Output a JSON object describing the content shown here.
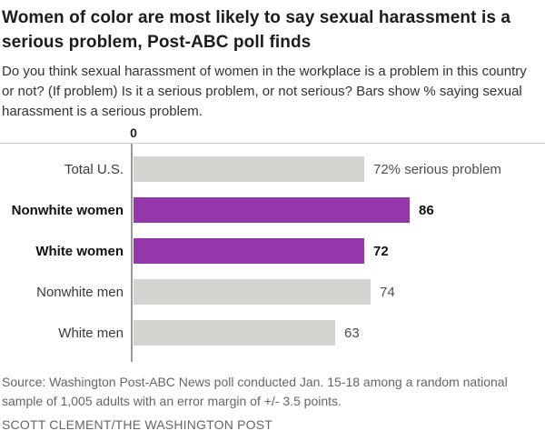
{
  "header": {
    "title": "Women of color are most likely to say sexual harassment is a serious problem, Post-ABC poll finds",
    "subtitle": "Do you think sexual harassment of women in the workplace is a problem in this country or not? (If problem) Is it a serious problem, or not serious? Bars show % saying sexual harassment is a serious problem."
  },
  "chart_data": {
    "type": "bar",
    "orientation": "horizontal",
    "title": "Women of color are most likely to say sexual harassment is a serious problem, Post-ABC poll finds",
    "xlabel": "",
    "ylabel": "",
    "xlim": [
      0,
      100
    ],
    "axis": {
      "zero_label": "0"
    },
    "categories": [
      "Total U.S.",
      "Nonwhite women",
      "White women",
      "Nonwhite men",
      "White men"
    ],
    "values": [
      72,
      86,
      72,
      74,
      63
    ],
    "rows": [
      {
        "label": "Total U.S.",
        "value": 72,
        "value_label": "72% serious problem",
        "highlighted": false
      },
      {
        "label": "Nonwhite women",
        "value": 86,
        "value_label": "86",
        "highlighted": true
      },
      {
        "label": "White women",
        "value": 72,
        "value_label": "72",
        "highlighted": true
      },
      {
        "label": "Nonwhite men",
        "value": 74,
        "value_label": "74",
        "highlighted": false
      },
      {
        "label": "White men",
        "value": 63,
        "value_label": "63",
        "highlighted": false
      }
    ],
    "bar_color_default": "#d3d3d0",
    "bar_color_highlight": "#9337ab",
    "axis_line_color": "#999999",
    "rule_color": "#cccccc",
    "grid": false,
    "legend": "none"
  },
  "footer": {
    "source": "Source: Washington Post-ABC News poll conducted Jan. 15-18 among a random national sample of 1,005 adults with an error margin of +/- 3.5 points.",
    "credit": "SCOTT CLEMENT/THE WASHINGTON POST"
  }
}
